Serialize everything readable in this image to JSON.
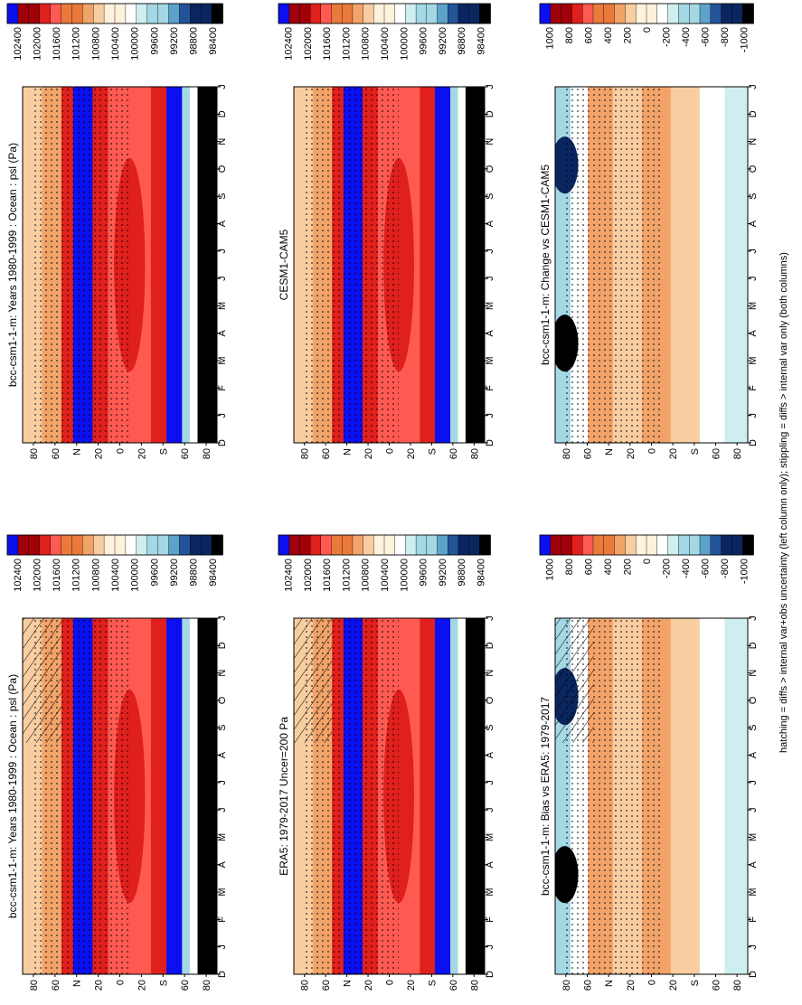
{
  "figure": {
    "footnote": "hatching = diffs > internal var+obs uncertainty (left column only); stippling = diffs > internal var only (both columns)"
  },
  "chart_data": [
    {
      "type": "heatmap",
      "title": "bcc-csm1-1-m: Years 1980-1999 : Ocean : psl (Pa)",
      "x_categories": [
        "D",
        "J",
        "F",
        "M",
        "A",
        "M",
        "J",
        "J",
        "A",
        "S",
        "O",
        "N",
        "D",
        "J"
      ],
      "y_ticks": [
        "80",
        "60",
        "N",
        "20",
        "0",
        "20",
        "S",
        "60",
        "80"
      ],
      "colorbar": {
        "labels": [
          "102400",
          "102000",
          "101600",
          "101200",
          "100800",
          "100400",
          "100000",
          "99600",
          "99200",
          "98800",
          "98400"
        ],
        "colors": [
          "#0000e6",
          "#1c3cff",
          "#8b0000",
          "#c00000",
          "#e81010",
          "#ff4a4a",
          "#ff7a5a",
          "#f07a2a",
          "#e89848",
          "#f0b070",
          "#f8d8a8",
          "#fff0d8",
          "#ffffff",
          "#e6f6f6",
          "#bfe6ec",
          "#96ccdc",
          "#5fa6c8",
          "#3278b4",
          "#1a4a8c",
          "#0c2860",
          "#000000"
        ]
      },
      "hatching": true,
      "stippling": true
    },
    {
      "type": "heatmap",
      "title": "bcc-csm1-1-m: Years 1980-1999 : Ocean : psl (Pa)",
      "x_categories": [
        "D",
        "J",
        "F",
        "M",
        "A",
        "M",
        "J",
        "J",
        "A",
        "S",
        "O",
        "N",
        "D",
        "J"
      ],
      "y_ticks": [
        "80",
        "60",
        "N",
        "20",
        "0",
        "20",
        "S",
        "60",
        "80"
      ],
      "colorbar": {
        "labels": [
          "102400",
          "102000",
          "101600",
          "101200",
          "100800",
          "100400",
          "100000",
          "99600",
          "99200",
          "98800",
          "98400"
        ]
      },
      "hatching": false,
      "stippling": true
    },
    {
      "type": "heatmap",
      "title": "ERA5: 1979-2017 Uncer=200 Pa",
      "x_categories": [
        "D",
        "J",
        "F",
        "M",
        "A",
        "M",
        "J",
        "J",
        "A",
        "S",
        "O",
        "N",
        "D",
        "J"
      ],
      "y_ticks": [
        "80",
        "60",
        "N",
        "20",
        "0",
        "20",
        "S",
        "60",
        "80"
      ],
      "colorbar": {
        "labels": [
          "102400",
          "102000",
          "101600",
          "101200",
          "100800",
          "100400",
          "100000",
          "99600",
          "99200",
          "98800",
          "98400"
        ]
      },
      "hatching": true,
      "stippling": true
    },
    {
      "type": "heatmap",
      "title": "CESM1-CAM5",
      "x_categories": [
        "D",
        "J",
        "F",
        "M",
        "A",
        "M",
        "J",
        "J",
        "A",
        "S",
        "O",
        "N",
        "D",
        "J"
      ],
      "y_ticks": [
        "80",
        "60",
        "N",
        "20",
        "0",
        "20",
        "S",
        "60",
        "80"
      ],
      "colorbar": {
        "labels": [
          "102400",
          "102000",
          "101600",
          "101200",
          "100800",
          "100400",
          "100000",
          "99600",
          "99200",
          "98800",
          "98400"
        ]
      },
      "hatching": false,
      "stippling": true
    },
    {
      "type": "heatmap",
      "title": "bcc-csm1-1-m: Bias vs ERA5: 1979-2017",
      "x_categories": [
        "D",
        "J",
        "F",
        "M",
        "A",
        "M",
        "J",
        "J",
        "A",
        "S",
        "O",
        "N",
        "D",
        "J"
      ],
      "y_ticks": [
        "80",
        "60",
        "N",
        "20",
        "0",
        "20",
        "S",
        "60",
        "80"
      ],
      "colorbar": {
        "labels": [
          "1000",
          "800",
          "600",
          "400",
          "200",
          "0",
          "-200",
          "-400",
          "-600",
          "-800",
          "-1000"
        ],
        "colors": [
          "#0000e6",
          "#1c3cff",
          "#8b0000",
          "#c00000",
          "#e81010",
          "#ff4a4a",
          "#f07a2a",
          "#e89848",
          "#f0b070",
          "#f8d8a8",
          "#fff0d8",
          "#ffffff",
          "#e6f6f6",
          "#bfe6ec",
          "#96ccdc",
          "#5fa6c8",
          "#3278b4",
          "#1a4a8c",
          "#0c2860",
          "#000000"
        ]
      },
      "hatching": true,
      "stippling": true
    },
    {
      "type": "heatmap",
      "title": "bcc-csm1-1-m: Change vs CESM1-CAM5",
      "x_categories": [
        "D",
        "J",
        "F",
        "M",
        "A",
        "M",
        "J",
        "J",
        "A",
        "S",
        "O",
        "N",
        "D",
        "J"
      ],
      "y_ticks": [
        "80",
        "60",
        "N",
        "20",
        "0",
        "20",
        "S",
        "60",
        "80"
      ],
      "colorbar": {
        "labels": [
          "1000",
          "800",
          "600",
          "400",
          "200",
          "0",
          "-200",
          "-400",
          "-600",
          "-800",
          "-1000"
        ]
      },
      "hatching": false,
      "stippling": true
    }
  ]
}
